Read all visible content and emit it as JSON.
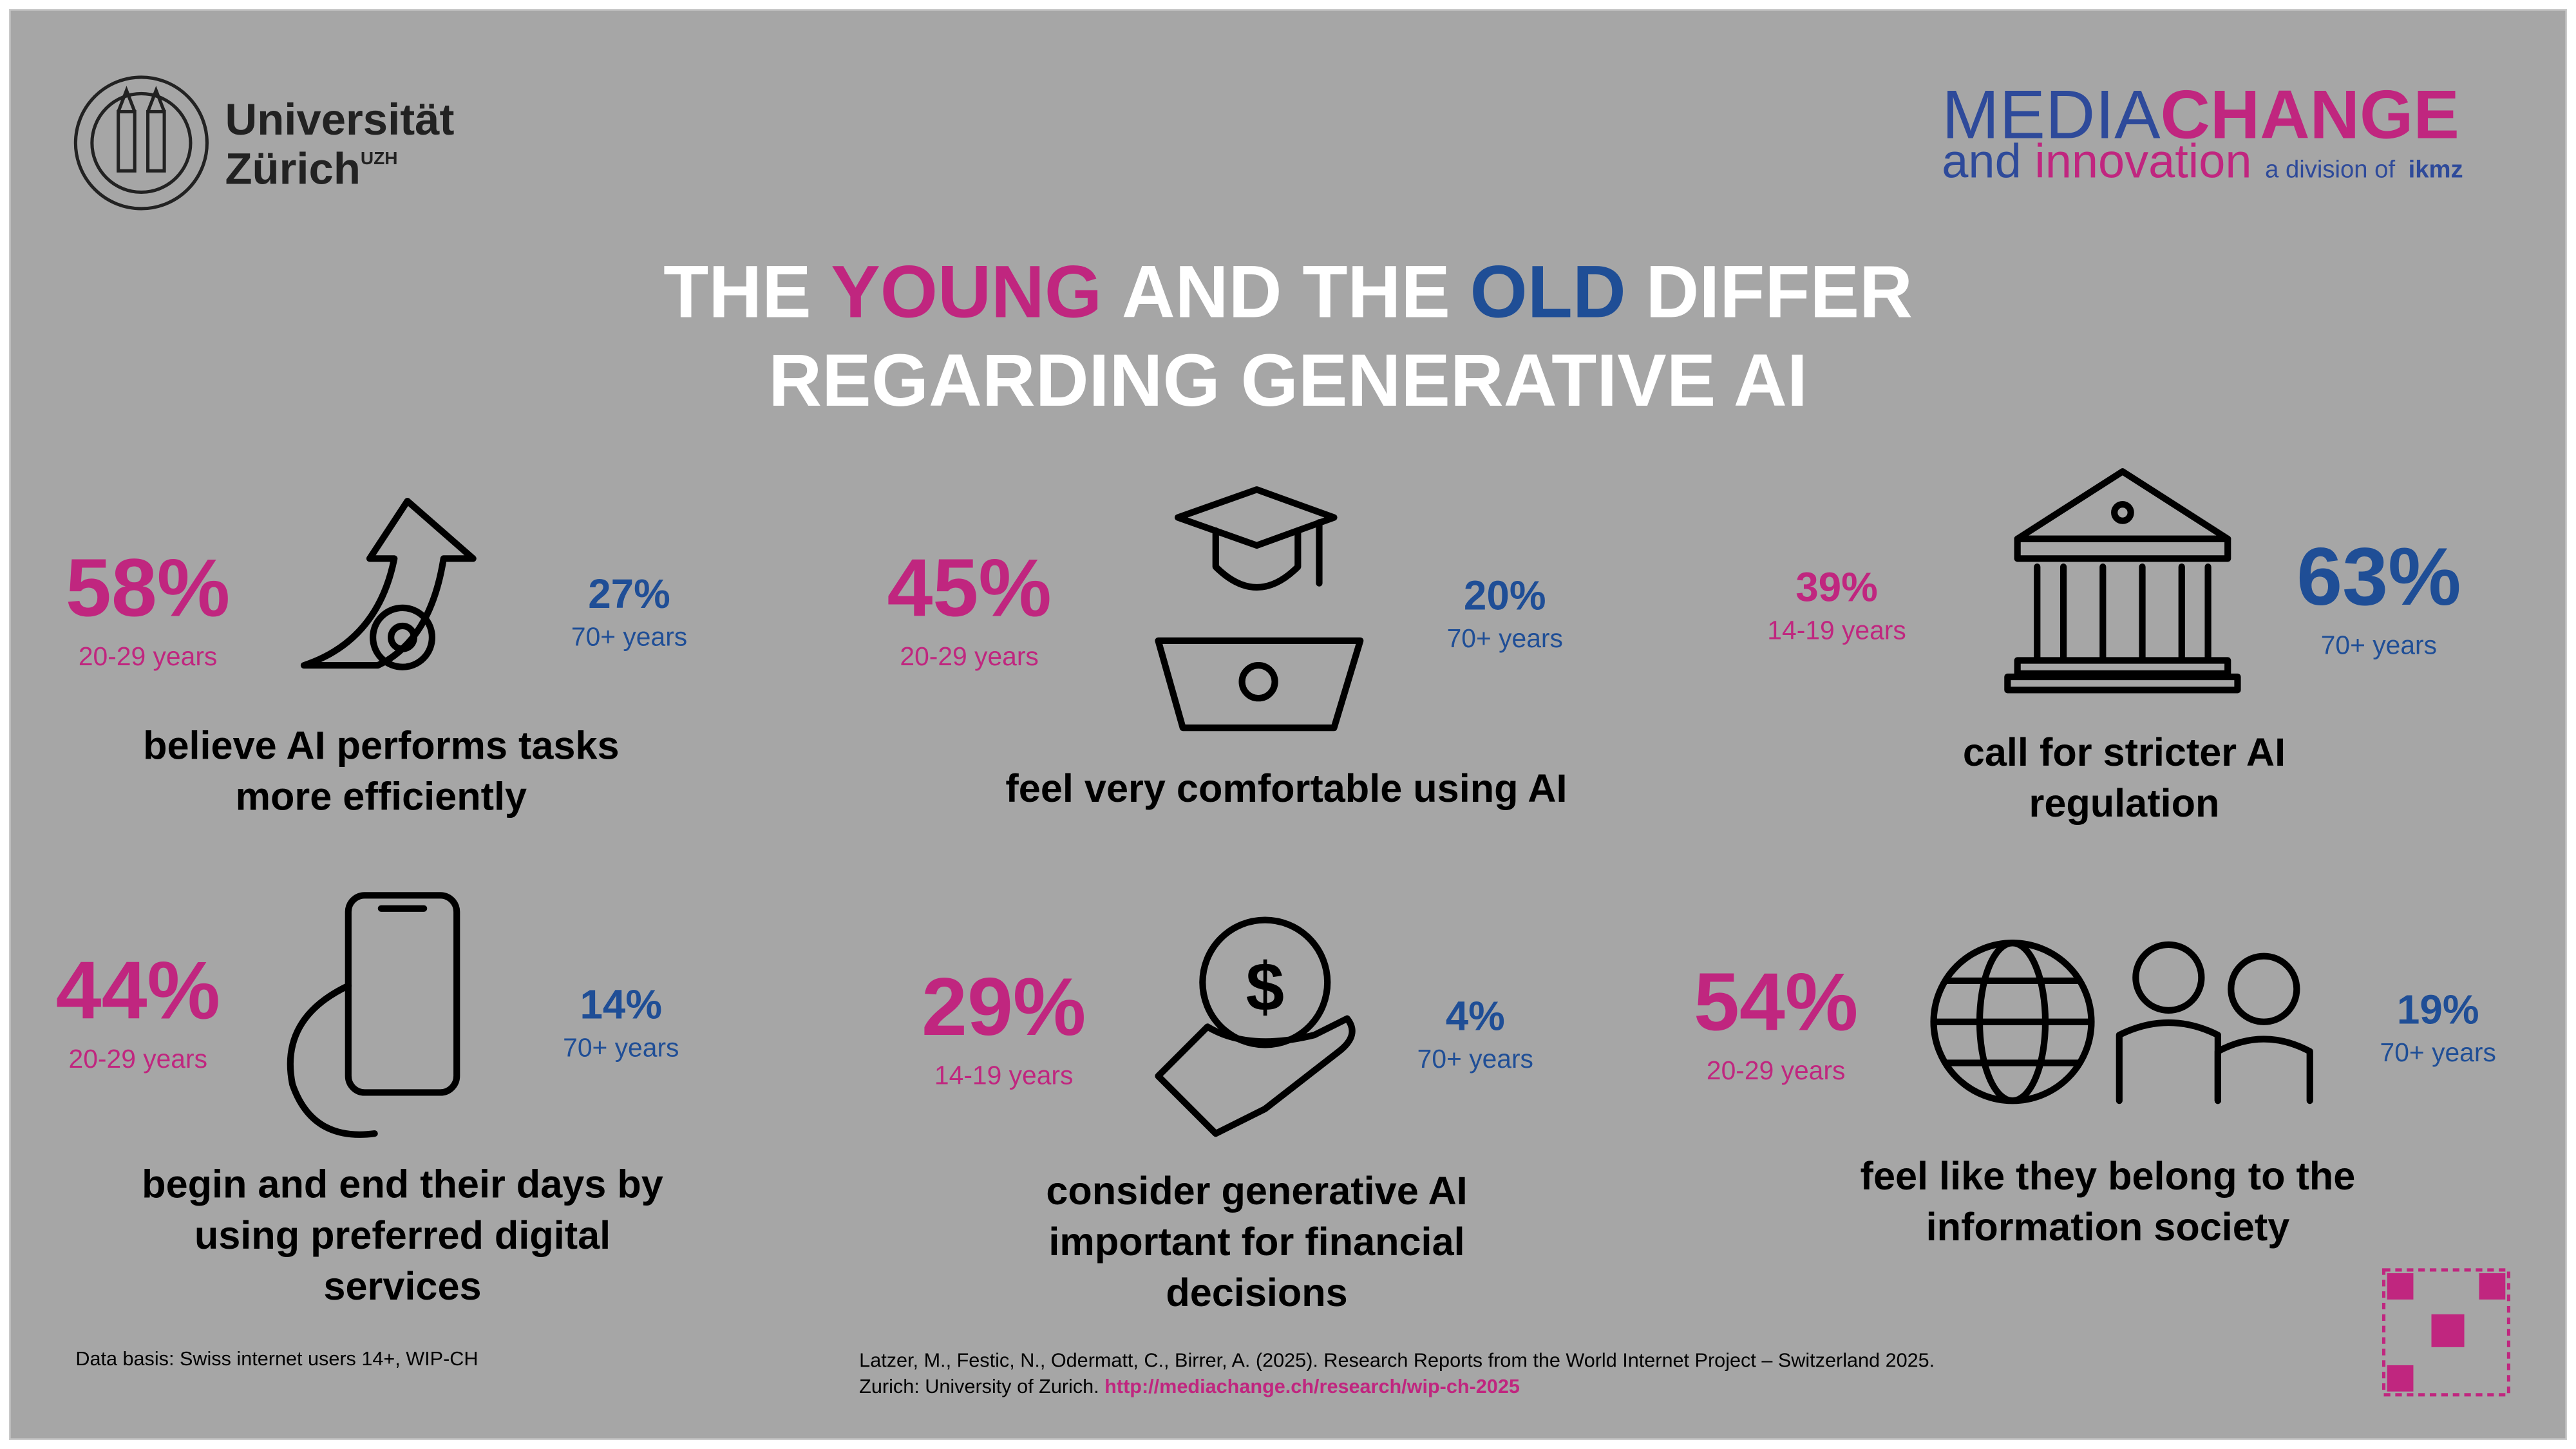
{
  "header": {
    "university": {
      "name": "Universität",
      "city": "Zürich",
      "abbr": "UZH"
    },
    "mediachange": {
      "media": "MEDIA",
      "change": "CHANGE",
      "and": "and",
      "innovation": "innovation",
      "division": "a division of",
      "ikmz": "ikmz"
    }
  },
  "title": {
    "line1": [
      "THE",
      "YOUNG",
      "AND THE",
      "OLD",
      "DIFFER"
    ],
    "line2": "REGARDING GENERATIVE AI"
  },
  "stats": [
    {
      "big": {
        "value": "58%",
        "group": "20-29 years"
      },
      "small": {
        "value": "27%",
        "group": "70+ years"
      },
      "caption": [
        "believe AI performs tasks",
        "more efficiently"
      ]
    },
    {
      "big": {
        "value": "45%",
        "group": "20-29 years"
      },
      "small": {
        "value": "20%",
        "group": "70+ years"
      },
      "caption": [
        "feel very comfortable using AI"
      ]
    },
    {
      "small": {
        "value": "39%",
        "group": "14-19 years"
      },
      "big": {
        "value": "63%",
        "group": "70+ years"
      },
      "caption": [
        "call for stricter AI",
        "regulation"
      ]
    },
    {
      "big": {
        "value": "44%",
        "group": "20-29 years"
      },
      "small": {
        "value": "14%",
        "group": "70+ years"
      },
      "caption": [
        "begin and end their days by",
        "using preferred digital",
        "services"
      ]
    },
    {
      "big": {
        "value": "29%",
        "group": "14-19 years"
      },
      "small": {
        "value": "4%",
        "group": "70+ years"
      },
      "caption": [
        "consider generative AI",
        "important for financial",
        "decisions"
      ]
    },
    {
      "big": {
        "value": "54%",
        "group": "20-29 years"
      },
      "small": {
        "value": "19%",
        "group": "70+ years"
      },
      "caption": [
        "feel like they belong to the",
        "information society"
      ]
    }
  ],
  "footer": {
    "data_basis": "Data basis: Swiss internet users 14+, WIP-CH",
    "citation": "Latzer, M., Festic, N., Odermatt, C., Birrer, A. (2025). Research Reports from the World Internet Project – Switzerland 2025.",
    "publisher": "Zurich: University of Zurich.",
    "link": "http://mediachange.ch/research/wip-ch-2025"
  }
}
